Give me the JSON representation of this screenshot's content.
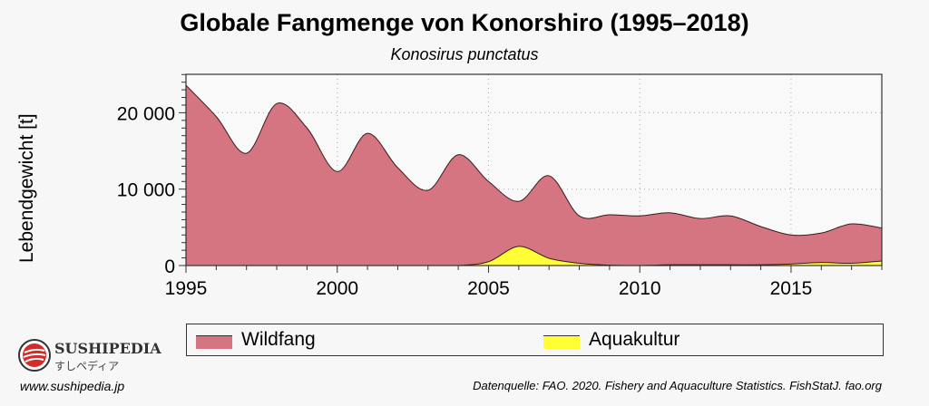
{
  "chart_data": {
    "type": "area",
    "title": "Globale Fangmenge von Konorshiro (1995–2018)",
    "subtitle": "Konosirus punctatus",
    "xlabel": "",
    "ylabel": "Lebendgewicht [t]",
    "xlim": [
      1995,
      2018
    ],
    "ylim": [
      0,
      25000
    ],
    "xticks": [
      "1995",
      "2000",
      "2005",
      "2010",
      "2015"
    ],
    "yticks": [
      "0",
      "10 000",
      "20 000"
    ],
    "grid": true,
    "legend_position": "bottom",
    "x": [
      1995,
      1996,
      1997,
      1998,
      1999,
      2000,
      2001,
      2002,
      2003,
      2004,
      2005,
      2006,
      2007,
      2008,
      2009,
      2010,
      2011,
      2012,
      2013,
      2014,
      2015,
      2016,
      2017,
      2018
    ],
    "series": [
      {
        "name": "Wildfang",
        "color": "#d57582",
        "values": [
          23600,
          19500,
          14700,
          21200,
          18000,
          12300,
          17300,
          12800,
          9850,
          14500,
          11000,
          8400,
          11750,
          6500,
          6650,
          6500,
          6900,
          6150,
          6500,
          5100,
          4000,
          4250,
          5450,
          4900
        ]
      },
      {
        "name": "Aquakultur",
        "color": "#ffff33",
        "values": [
          0,
          0,
          0,
          0,
          0,
          0,
          0,
          0,
          0,
          0,
          500,
          2500,
          950,
          300,
          50,
          0,
          100,
          100,
          100,
          100,
          200,
          400,
          300,
          600
        ]
      }
    ]
  },
  "source": "Datenquelle: FAO. 2020. Fishery and Aquaculture Statistics. FishStatJ. fao.org",
  "brand": {
    "name": "SUSHIPEDIA",
    "kana": "すしペディア",
    "url": "www.sushipedia.jp"
  }
}
